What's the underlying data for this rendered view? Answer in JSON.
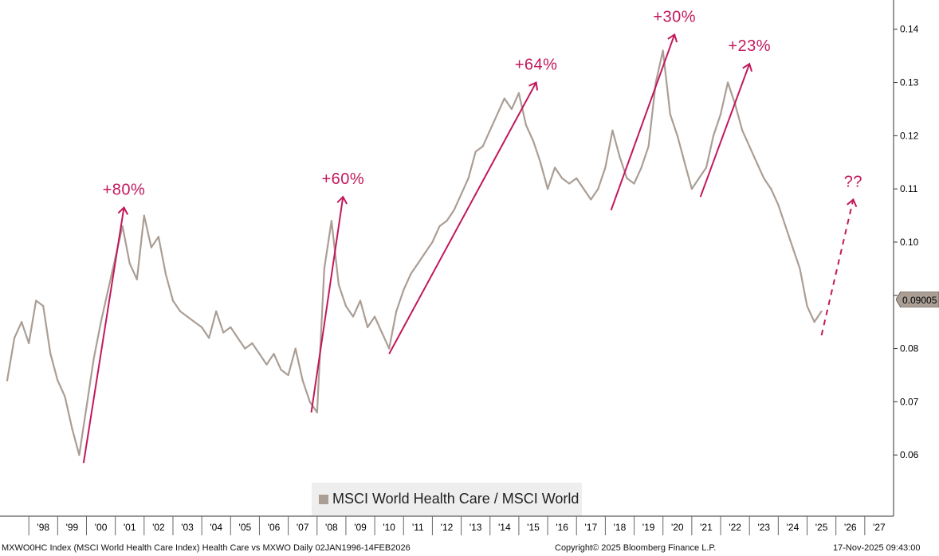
{
  "chart_data": {
    "type": "line",
    "title": "",
    "series": [
      {
        "name": "MSCI World Health Care / MSCI World",
        "color": "#aa9e95",
        "x": [
          1997.25,
          1997.5,
          1997.75,
          1998.0,
          1998.25,
          1998.5,
          1998.75,
          1999.0,
          1999.25,
          1999.5,
          1999.75,
          2000.0,
          2000.25,
          2000.5,
          2000.75,
          2001.0,
          2001.25,
          2001.5,
          2001.75,
          2002.0,
          2002.25,
          2002.5,
          2002.75,
          2003.0,
          2003.25,
          2003.5,
          2003.75,
          2004.0,
          2004.25,
          2004.5,
          2004.75,
          2005.0,
          2005.25,
          2005.5,
          2005.75,
          2006.0,
          2006.25,
          2006.5,
          2006.75,
          2007.0,
          2007.25,
          2007.5,
          2007.75,
          2008.0,
          2008.25,
          2008.5,
          2008.75,
          2009.0,
          2009.25,
          2009.5,
          2009.75,
          2010.0,
          2010.25,
          2010.5,
          2010.75,
          2011.0,
          2011.25,
          2011.5,
          2011.75,
          2012.0,
          2012.25,
          2012.5,
          2012.75,
          2013.0,
          2013.25,
          2013.5,
          2013.75,
          2014.0,
          2014.25,
          2014.5,
          2014.75,
          2015.0,
          2015.25,
          2015.5,
          2015.75,
          2016.0,
          2016.25,
          2016.5,
          2016.75,
          2017.0,
          2017.25,
          2017.5,
          2017.75,
          2018.0,
          2018.25,
          2018.5,
          2018.75,
          2019.0,
          2019.25,
          2019.5,
          2019.75,
          2020.0,
          2020.25,
          2020.5,
          2020.75,
          2021.0,
          2021.25,
          2021.5,
          2021.75,
          2022.0,
          2022.25,
          2022.5,
          2022.75,
          2023.0,
          2023.25,
          2023.5,
          2023.75,
          2024.0,
          2024.25,
          2024.5,
          2024.75,
          2025.0,
          2025.25,
          2025.5
        ],
        "values": [
          0.074,
          0.082,
          0.085,
          0.081,
          0.089,
          0.088,
          0.079,
          0.074,
          0.071,
          0.065,
          0.06,
          0.069,
          0.078,
          0.085,
          0.091,
          0.097,
          0.103,
          0.096,
          0.093,
          0.105,
          0.099,
          0.101,
          0.094,
          0.089,
          0.087,
          0.086,
          0.085,
          0.084,
          0.082,
          0.087,
          0.083,
          0.084,
          0.082,
          0.08,
          0.081,
          0.079,
          0.077,
          0.079,
          0.076,
          0.075,
          0.08,
          0.074,
          0.07,
          0.068,
          0.095,
          0.104,
          0.092,
          0.088,
          0.086,
          0.089,
          0.084,
          0.086,
          0.083,
          0.08,
          0.087,
          0.091,
          0.094,
          0.096,
          0.098,
          0.1,
          0.103,
          0.104,
          0.106,
          0.109,
          0.112,
          0.117,
          0.118,
          0.121,
          0.124,
          0.127,
          0.125,
          0.128,
          0.122,
          0.119,
          0.115,
          0.11,
          0.114,
          0.112,
          0.111,
          0.112,
          0.11,
          0.108,
          0.11,
          0.114,
          0.121,
          0.116,
          0.112,
          0.111,
          0.114,
          0.118,
          0.13,
          0.136,
          0.124,
          0.12,
          0.115,
          0.11,
          0.112,
          0.114,
          0.12,
          0.124,
          0.13,
          0.126,
          0.121,
          0.118,
          0.115,
          0.112,
          0.11,
          0.107,
          0.103,
          0.099,
          0.095,
          0.088,
          0.085,
          0.087
        ],
        "last_value_label": "0.09005"
      }
    ],
    "xlim": [
      1997.0,
      2028.0
    ],
    "ylim": [
      0.0485,
      0.1455
    ],
    "y_ticks": [
      0.06,
      0.07,
      0.08,
      0.09,
      0.1,
      0.11,
      0.12,
      0.13,
      0.14
    ],
    "y_tick_labels": [
      "0.06",
      "0.07",
      "0.08",
      "0.09",
      "0.10",
      "0.11",
      "0.12",
      "0.13",
      "0.14"
    ],
    "x_ticks": [
      1998,
      1999,
      2000,
      2001,
      2002,
      2003,
      2004,
      2005,
      2006,
      2007,
      2008,
      2009,
      2010,
      2011,
      2012,
      2013,
      2014,
      2015,
      2016,
      2017,
      2018,
      2019,
      2020,
      2021,
      2022,
      2023,
      2024,
      2025,
      2026,
      2027
    ],
    "x_tick_labels": [
      "'98",
      "'99",
      "'00",
      "'01",
      "'02",
      "'03",
      "'04",
      "'05",
      "'06",
      "'07",
      "'08",
      "'09",
      "'10",
      "'11",
      "'12",
      "'13",
      "'14",
      "'15",
      "'16",
      "'17",
      "'18",
      "'19",
      "'20",
      "'21",
      "'22",
      "'23",
      "'24",
      "'25",
      "'26",
      "'27"
    ],
    "axis_side": "right",
    "legend_position": "bottom-center",
    "grid": false,
    "arrows": [
      {
        "from_x": 1999.9,
        "from_y": 0.0585,
        "to_x": 2001.3,
        "to_y": 0.1065,
        "label": "+80%",
        "style": "solid"
      },
      {
        "from_x": 2007.8,
        "from_y": 0.068,
        "to_x": 2008.9,
        "to_y": 0.1085,
        "label": "+60%",
        "style": "solid"
      },
      {
        "from_x": 2010.5,
        "from_y": 0.079,
        "to_x": 2015.6,
        "to_y": 0.13,
        "label": "+64%",
        "style": "solid"
      },
      {
        "from_x": 2018.2,
        "from_y": 0.106,
        "to_x": 2020.4,
        "to_y": 0.139,
        "label": "+30%",
        "style": "solid"
      },
      {
        "from_x": 2021.3,
        "from_y": 0.1085,
        "to_x": 2023.0,
        "to_y": 0.1335,
        "label": "+23%",
        "style": "solid"
      },
      {
        "from_x": 2025.5,
        "from_y": 0.0825,
        "to_x": 2026.6,
        "to_y": 0.108,
        "label": "??",
        "style": "dashed"
      }
    ],
    "arrow_color": "#c2185b"
  },
  "legend": {
    "label": "MSCI World Health Care / MSCI World"
  },
  "footer": {
    "left": "MXWO0HC Index (MSCI World Health Care Index) Health Care vs MXWO Daily 02JAN1996-14FEB2026",
    "center": "Copyright© 2025 Bloomberg Finance L.P.",
    "right": "17-Nov-2025 09:43:00"
  }
}
